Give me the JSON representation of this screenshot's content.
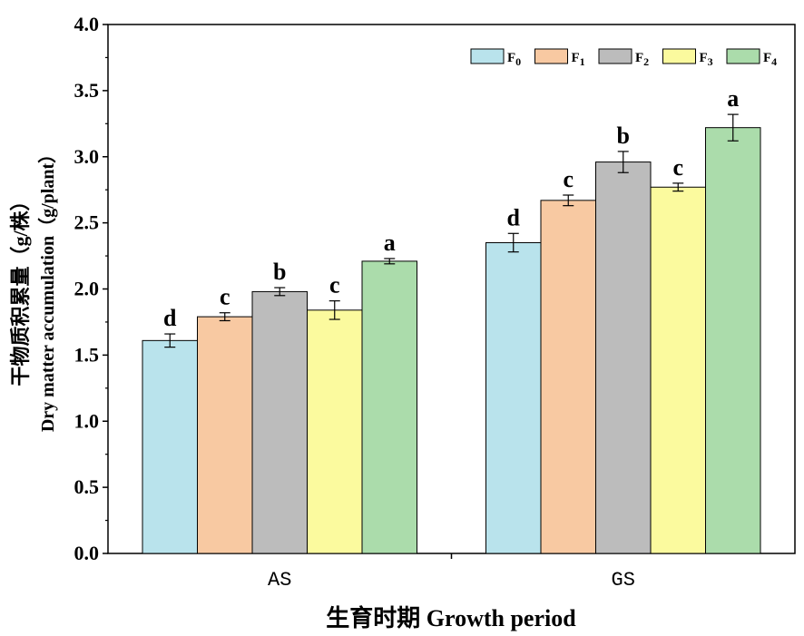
{
  "chart_data": {
    "type": "bar",
    "categories": [
      "AS",
      "GS"
    ],
    "series": [
      {
        "name": "F0",
        "legend_base": "F",
        "legend_sub": "0",
        "color": "#b9e3ec",
        "values": [
          1.61,
          2.35
        ],
        "errors": [
          0.05,
          0.07
        ],
        "letters": [
          "d",
          "d"
        ]
      },
      {
        "name": "F1",
        "legend_base": "F",
        "legend_sub": "1",
        "color": "#f8c9a2",
        "values": [
          1.79,
          2.67
        ],
        "errors": [
          0.03,
          0.04
        ],
        "letters": [
          "c",
          "c"
        ]
      },
      {
        "name": "F2",
        "legend_base": "F",
        "legend_sub": "2",
        "color": "#bcbcbc",
        "values": [
          1.98,
          2.96
        ],
        "errors": [
          0.03,
          0.08
        ],
        "letters": [
          "b",
          "b"
        ]
      },
      {
        "name": "F3",
        "legend_base": "F",
        "legend_sub": "3",
        "color": "#fbfa9e",
        "values": [
          1.84,
          2.77
        ],
        "errors": [
          0.07,
          0.03
        ],
        "letters": [
          "c",
          "c"
        ]
      },
      {
        "name": "F4",
        "legend_base": "F",
        "legend_sub": "4",
        "color": "#abdcab",
        "values": [
          2.21,
          3.22
        ],
        "errors": [
          0.02,
          0.1
        ],
        "letters": [
          "a",
          "a"
        ]
      }
    ],
    "ylim": [
      0,
      4.0
    ],
    "yticks": [
      "0.0",
      "0.5",
      "1.0",
      "1.5",
      "2.0",
      "2.5",
      "3.0",
      "3.5",
      "4.0"
    ],
    "xlabel": "生育时期 Growth period",
    "ylabel_cn": "干物质积累量（g/株）",
    "ylabel_en": "Dry matter accumulation（g/plant）",
    "legend_position": "top-right",
    "grid": false
  }
}
